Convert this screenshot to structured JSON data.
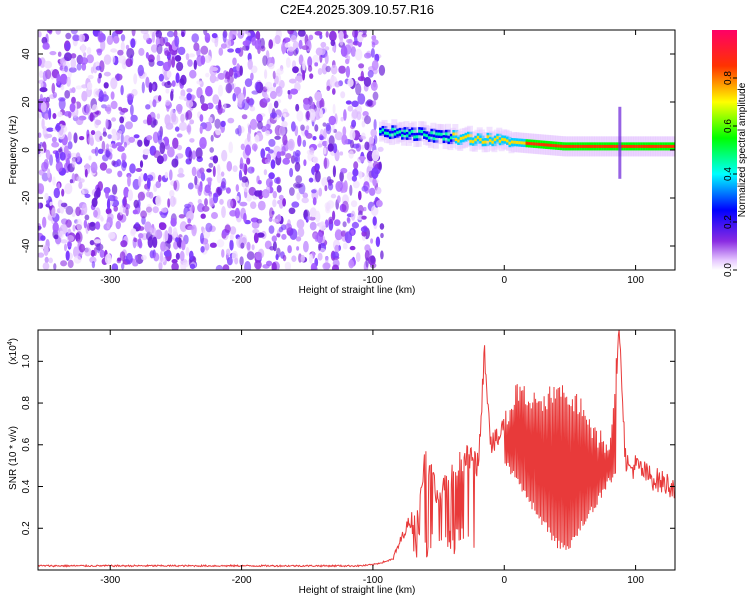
{
  "figure": {
    "title": "C2E4.2025.309.10.57.R16"
  },
  "chart_data": [
    {
      "type": "heatmap",
      "xlabel": "Height of straight line (km)",
      "ylabel": "Frequency (Hz)",
      "xlim": [
        -355,
        130
      ],
      "ylim": [
        -50,
        50
      ],
      "xticks": [
        -300,
        -200,
        -100,
        0,
        100
      ],
      "yticks": [
        -40,
        -20,
        0,
        20,
        40
      ],
      "colorbar": {
        "label": "Normalized spectral amplitude",
        "range": [
          0,
          1
        ],
        "ticks": [
          "0.0",
          "0.2",
          "0.4",
          "0.6",
          "0.8"
        ],
        "colormap": "rainbow (white/violet low → red/magenta high)"
      },
      "features": [
        {
          "name": "broadband noise",
          "x_range": [
            -355,
            -93
          ],
          "freq_range": [
            -50,
            50
          ],
          "amplitude": 0.1
        },
        {
          "name": "Doppler signal band",
          "x_range": [
            -93,
            130
          ],
          "freq_center_start": 8,
          "freq_center_end": 1.5,
          "amplitude_peak": 0.95
        },
        {
          "name": "vertical spike",
          "x": 88,
          "freq_range": [
            -12,
            18
          ]
        }
      ]
    },
    {
      "type": "line",
      "xlabel": "Height of straight line (km)",
      "ylabel": "SNR (10 * v/v)",
      "yscale_label": "(x10",
      "yscale_exp": "4",
      "xlim": [
        -355,
        130
      ],
      "ylim": [
        0,
        1.15
      ],
      "xticks": [
        -300,
        -200,
        -100,
        0,
        100
      ],
      "yticks": [
        0.2,
        0.4,
        0.6,
        0.8,
        1.0
      ],
      "ytick_labels": [
        "0.2",
        "0.4",
        "0.6",
        "0.8",
        "1.0"
      ],
      "series": [
        {
          "color": "#e83a3a",
          "x": [
            -355,
            -300,
            -250,
            -200,
            -150,
            -110,
            -100,
            -85,
            -75,
            -65,
            -60,
            -50,
            -40,
            -30,
            -20,
            -15,
            -10,
            -5,
            0,
            10,
            20,
            30,
            40,
            50,
            60,
            70,
            80,
            88,
            92,
            95,
            100,
            110,
            120,
            130
          ],
          "y": [
            0.02,
            0.02,
            0.02,
            0.02,
            0.02,
            0.02,
            0.025,
            0.05,
            0.2,
            0.3,
            0.55,
            0.35,
            0.45,
            0.55,
            0.5,
            1.05,
            0.6,
            0.62,
            0.7,
            0.85,
            0.8,
            0.8,
            0.85,
            0.82,
            0.78,
            0.65,
            0.6,
            1.15,
            0.55,
            0.48,
            0.5,
            0.45,
            0.42,
            0.4
          ],
          "dips": [
            {
              "x": [
                0,
                5,
                10,
                15,
                20,
                25,
                30,
                35,
                40,
                45,
                50,
                55,
                60,
                65,
                70,
                75,
                80,
                85
              ],
              "y": [
                0.5,
                0.45,
                0.4,
                0.35,
                0.3,
                0.25,
                0.2,
                0.15,
                0.1,
                0.08,
                0.1,
                0.15,
                0.2,
                0.25,
                0.3,
                0.35,
                0.4,
                0.45
              ]
            }
          ]
        }
      ]
    }
  ]
}
